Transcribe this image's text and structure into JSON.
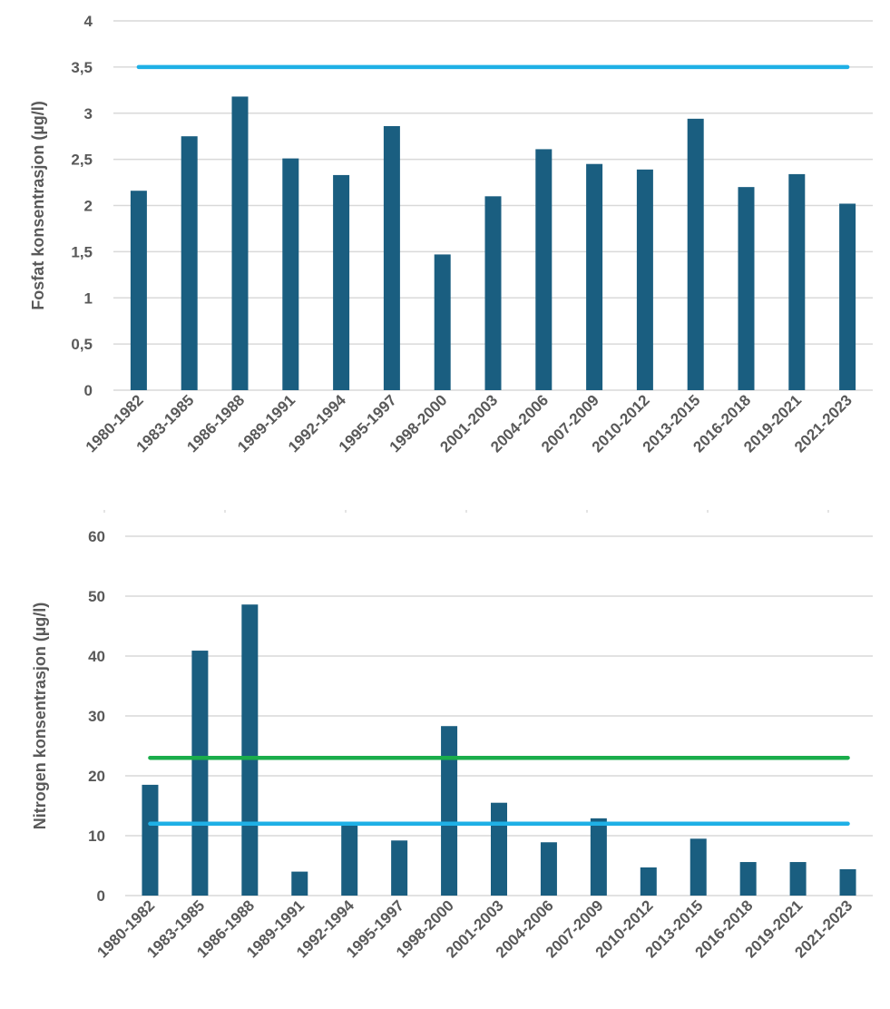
{
  "chart_data": [
    {
      "type": "bar",
      "ylabel": "Fosfat konsentrasjon (µg/l)",
      "xlabel": "",
      "ylim": [
        0,
        4
      ],
      "yticks": [
        "0",
        "0,5",
        "1",
        "1,5",
        "2",
        "2,5",
        "3",
        "3,5",
        "4"
      ],
      "grid": true,
      "bar_color": "#1a5e80",
      "categories": [
        "1980-1982",
        "1983-1985",
        "1986-1988",
        "1989-1991",
        "1992-1994",
        "1995-1997",
        "1998-2000",
        "2001-2003",
        "2004-2006",
        "2007-2009",
        "2010-2012",
        "2013-2015",
        "2016-2018",
        "2019-2021",
        "2021-2023"
      ],
      "values": [
        2.16,
        2.75,
        3.18,
        2.51,
        2.33,
        2.86,
        1.47,
        2.1,
        2.61,
        2.45,
        2.39,
        2.94,
        2.2,
        2.34,
        2.02
      ],
      "reference_lines": [
        {
          "value": 3.5,
          "color": "#1fb0e6"
        }
      ]
    },
    {
      "type": "bar",
      "ylabel": "Nitrogen konsentrasjon (µg/l)",
      "xlabel": "",
      "ylim": [
        0,
        60
      ],
      "yticks": [
        "0",
        "10",
        "20",
        "30",
        "40",
        "50",
        "60"
      ],
      "grid": true,
      "bar_color": "#1a5e80",
      "categories": [
        "1980-1982",
        "1983-1985",
        "1986-1988",
        "1989-1991",
        "1992-1994",
        "1995-1997",
        "1998-2000",
        "2001-2003",
        "2004-2006",
        "2007-2009",
        "2010-2012",
        "2013-2015",
        "2016-2018",
        "2019-2021",
        "2021-2023"
      ],
      "values": [
        18.5,
        40.9,
        48.6,
        4.0,
        12.0,
        9.2,
        28.3,
        15.5,
        8.9,
        12.9,
        4.7,
        9.5,
        5.6,
        5.6,
        4.4
      ],
      "reference_lines": [
        {
          "value": 23,
          "color": "#1aad4b"
        },
        {
          "value": 12,
          "color": "#1fb0e6"
        }
      ]
    }
  ]
}
